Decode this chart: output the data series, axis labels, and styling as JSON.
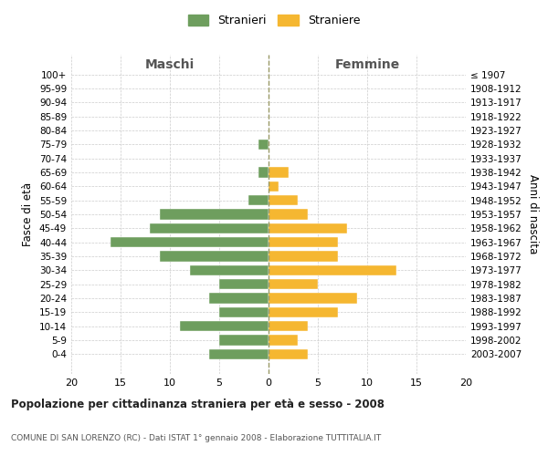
{
  "age_groups": [
    "100+",
    "95-99",
    "90-94",
    "85-89",
    "80-84",
    "75-79",
    "70-74",
    "65-69",
    "60-64",
    "55-59",
    "50-54",
    "45-49",
    "40-44",
    "35-39",
    "30-34",
    "25-29",
    "20-24",
    "15-19",
    "10-14",
    "5-9",
    "0-4"
  ],
  "birth_years": [
    "≤ 1907",
    "1908-1912",
    "1913-1917",
    "1918-1922",
    "1923-1927",
    "1928-1932",
    "1933-1937",
    "1938-1942",
    "1943-1947",
    "1948-1952",
    "1953-1957",
    "1958-1962",
    "1963-1967",
    "1968-1972",
    "1973-1977",
    "1978-1982",
    "1983-1987",
    "1988-1992",
    "1993-1997",
    "1998-2002",
    "2003-2007"
  ],
  "maschi": [
    0,
    0,
    0,
    0,
    0,
    1,
    0,
    1,
    0,
    2,
    11,
    12,
    16,
    11,
    8,
    5,
    6,
    5,
    9,
    5,
    6
  ],
  "femmine": [
    0,
    0,
    0,
    0,
    0,
    0,
    0,
    2,
    1,
    3,
    4,
    8,
    7,
    7,
    13,
    5,
    9,
    7,
    4,
    3,
    4
  ],
  "maschi_color": "#6e9e5e",
  "femmine_color": "#f5b731",
  "title_main": "Popolazione per cittadinanza straniera per età e sesso - 2008",
  "title_sub": "COMUNE DI SAN LORENZO (RC) - Dati ISTAT 1° gennaio 2008 - Elaborazione TUTTITALIA.IT",
  "xlabel_left": "Maschi",
  "xlabel_right": "Femmine",
  "ylabel_left": "Fasce di età",
  "ylabel_right": "Anni di nascita",
  "legend_maschi": "Stranieri",
  "legend_femmine": "Straniere",
  "xlim": 20,
  "background_color": "#ffffff",
  "grid_color": "#cccccc",
  "dashed_line_color": "#999966"
}
